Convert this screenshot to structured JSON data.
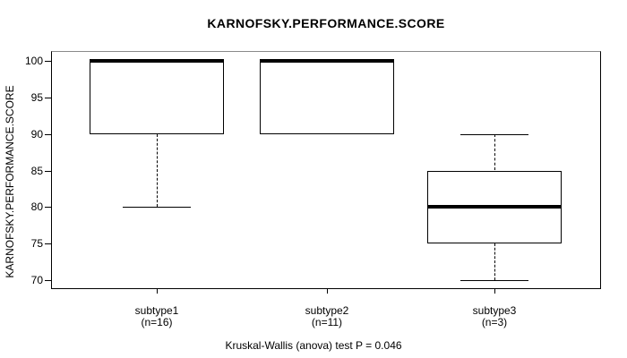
{
  "figure": {
    "title": "KARNOFSKY.PERFORMANCE.SCORE",
    "caption": "Kruskal-Wallis (anova) test P = 0.046",
    "background_color": "#ffffff",
    "line_color": "#000000",
    "frame_top_color": "#8a8a8a"
  },
  "y_axis": {
    "label": "KARNOFSKY.PERFORMANCE.SCORE",
    "tick_labels": [
      "100",
      "95",
      "90",
      "85",
      "80",
      "75",
      "70"
    ]
  },
  "x_axis": {
    "groups": [
      {
        "line1": "subtype1",
        "line2": "(n=16)"
      },
      {
        "line1": "subtype2",
        "line2": "(n=11)"
      },
      {
        "line1": "subtype3",
        "line2": "(n=3)"
      }
    ]
  },
  "chart_data": {
    "type": "boxplot",
    "title": "KARNOFSKY.PERFORMANCE.SCORE",
    "ylabel": "KARNOFSKY.PERFORMANCE.SCORE",
    "xlabel": "",
    "categories": [
      "subtype1",
      "subtype2",
      "subtype3"
    ],
    "group_sizes": [
      16,
      11,
      3
    ],
    "series": [
      {
        "name": "subtype1",
        "n": 16,
        "whisker_low": 80,
        "q1": 90,
        "median": 100,
        "q3": 100,
        "whisker_high": 100,
        "outliers": []
      },
      {
        "name": "subtype2",
        "n": 11,
        "whisker_low": 90,
        "q1": 90,
        "median": 100,
        "q3": 100,
        "whisker_high": 100,
        "outliers": []
      },
      {
        "name": "subtype3",
        "n": 3,
        "whisker_low": 70,
        "q1": 75,
        "median": 80,
        "q3": 85,
        "whisker_high": 90,
        "outliers": []
      }
    ],
    "yticks": [
      70,
      75,
      80,
      85,
      90,
      95,
      100
    ],
    "ylim": [
      68.8,
      101.2
    ],
    "grid": false,
    "legend": null,
    "annotation": "Kruskal-Wallis (anova) test P = 0.046"
  }
}
